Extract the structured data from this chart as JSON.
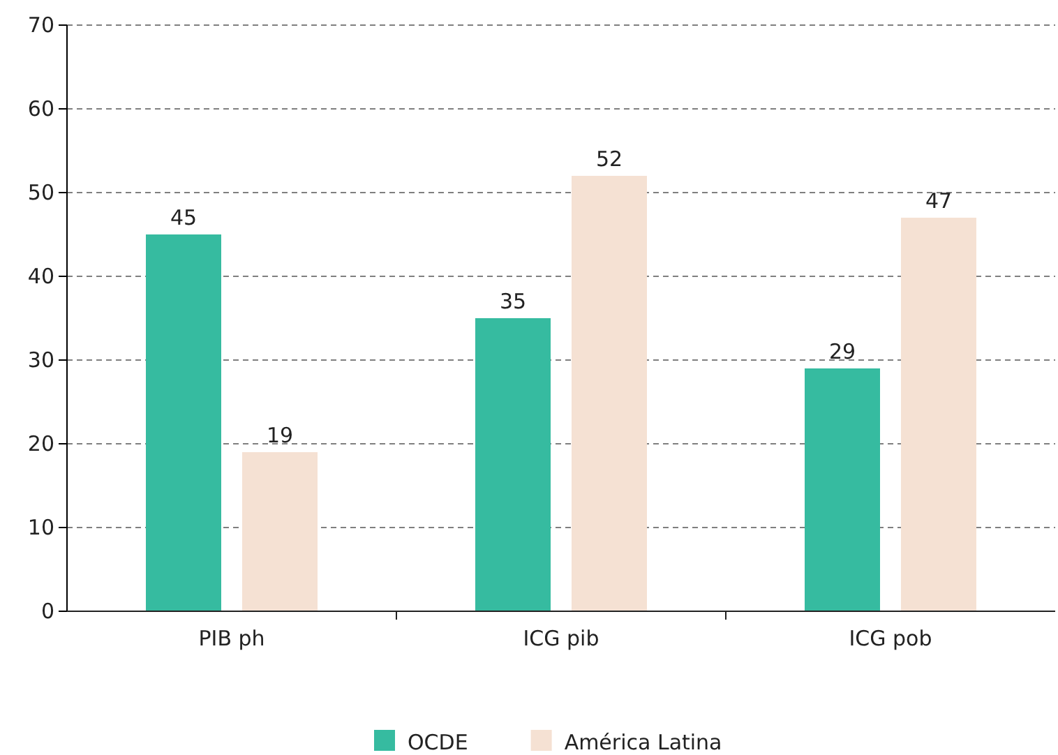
{
  "chart_data": {
    "type": "bar",
    "categories": [
      "PIB ph",
      "ICG pib",
      "ICG pob"
    ],
    "series": [
      {
        "name": "OCDE",
        "color": "#36bba0",
        "values": [
          45,
          35,
          29
        ]
      },
      {
        "name": "América Latina",
        "color": "#f5e1d3",
        "values": [
          19,
          52,
          47
        ]
      }
    ],
    "ylim": [
      0,
      70
    ],
    "yticks": [
      0,
      10,
      20,
      30,
      40,
      50,
      60,
      70
    ],
    "grid": "y",
    "legend": "bottom",
    "data_labels": true
  }
}
